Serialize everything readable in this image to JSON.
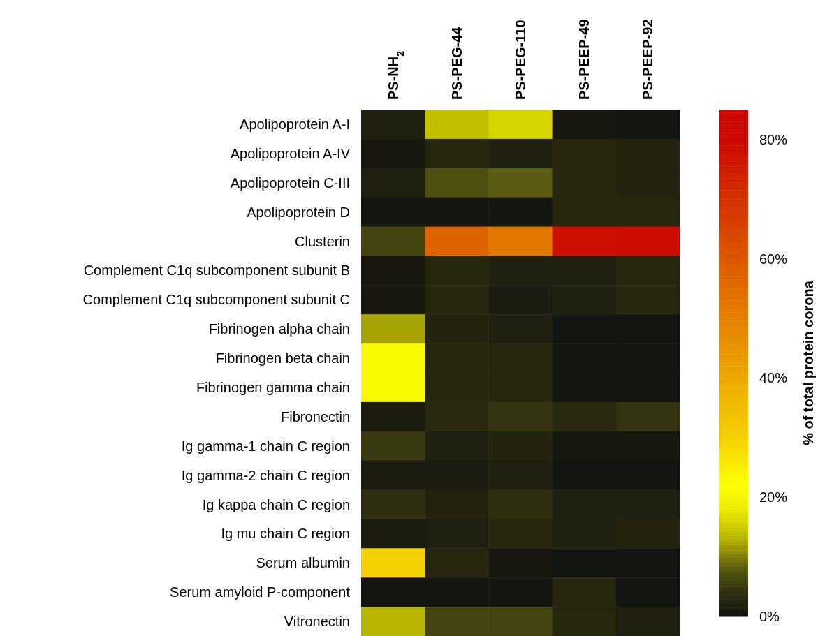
{
  "chart_data": {
    "type": "heatmap",
    "categories": [
      "PS-NH$_{2}$",
      "PS-PEG-44",
      "PS-PEG-110",
      "PS-PEEP-49",
      "PS-PEEP-92"
    ],
    "y_categories": [
      "Apolipoprotein A-I",
      "Apolipoprotein A-IV",
      "Apolipoprotein C-III",
      "Apolipoprotein D",
      "Clusterin",
      "Complement C1q subcomponent subunit B",
      "Complement C1q subcomponent subunit C",
      "Fibrinogen alpha chain",
      "Fibrinogen beta chain",
      "Fibrinogen gamma chain",
      "Fibronectin",
      "Ig gamma-1 chain C region",
      "Ig gamma-2 chain C region",
      "Ig kappa chain C region",
      "Ig mu chain C region",
      "Serum albumin",
      "Serum amyloid P-component",
      "Vitronectin"
    ],
    "cells": [
      [
        2,
        14,
        16,
        1,
        0.5
      ],
      [
        1,
        3,
        2,
        3,
        2.5
      ],
      [
        2,
        7,
        8,
        3,
        2.5
      ],
      [
        0.5,
        0.5,
        0.5,
        3,
        3
      ],
      [
        6,
        57,
        52,
        78,
        79
      ],
      [
        1,
        3,
        2,
        2,
        3
      ],
      [
        1,
        3,
        1.5,
        2,
        3
      ],
      [
        12,
        2.5,
        2,
        0.5,
        0.5
      ],
      [
        21,
        3,
        3,
        0.5,
        0.5
      ],
      [
        21,
        3,
        3,
        0.5,
        0.5
      ],
      [
        1.5,
        3.5,
        4.5,
        3.5,
        4.5
      ],
      [
        5,
        2,
        2.5,
        1,
        1
      ],
      [
        1.5,
        1.5,
        2,
        0.5,
        0.5
      ],
      [
        4,
        2.5,
        4,
        2,
        2
      ],
      [
        1.5,
        2,
        3,
        2,
        2.5
      ],
      [
        30,
        3,
        1,
        0.5,
        0.5
      ],
      [
        0.5,
        0.5,
        0.5,
        3,
        0.5
      ],
      [
        13,
        6,
        6,
        3,
        2
      ]
    ],
    "clim": [
      0,
      85
    ],
    "cticks": [
      {
        "value": 0,
        "label": "0%"
      },
      {
        "value": 20,
        "label": "20%"
      },
      {
        "value": 40,
        "label": "40%"
      },
      {
        "value": 60,
        "label": "60%"
      },
      {
        "value": 80,
        "label": "80%"
      }
    ],
    "clabel": "% of total protein corona"
  }
}
